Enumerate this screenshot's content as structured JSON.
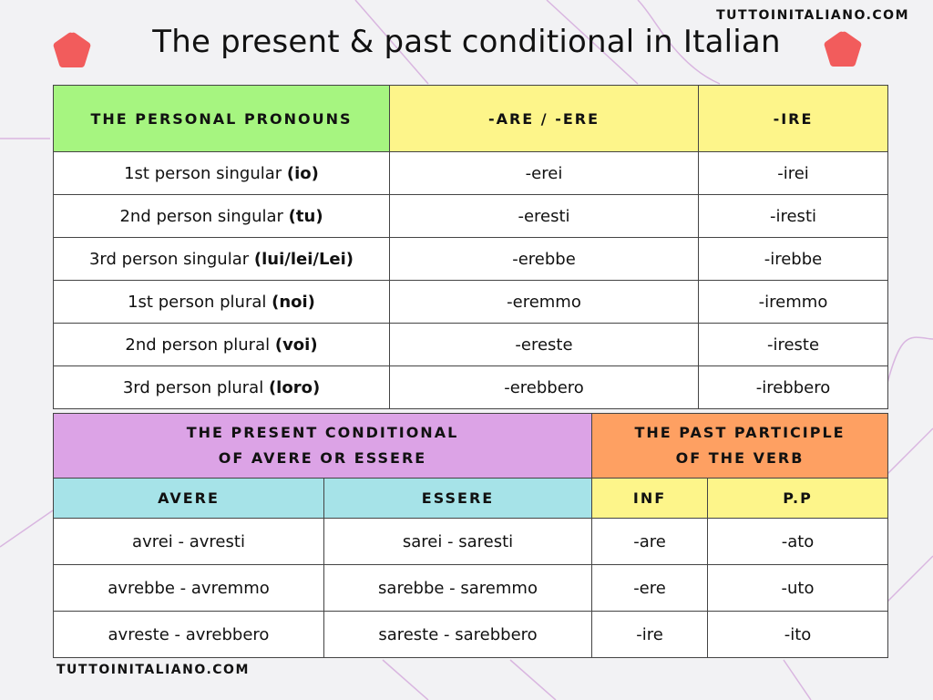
{
  "site": "TUTTOINITALIANO.COM",
  "title": "The present & past conditional in Italian",
  "colors": {
    "pentagon": "#f25c5c",
    "green": "#a6f580",
    "yellow": "#fdf58a",
    "purple": "#dca3e6",
    "orange": "#fea062",
    "cyan": "#a6e3e8"
  },
  "endings_table": {
    "headers": [
      "THE PERSONAL PRONOUNS",
      "-ARE / -ERE",
      "-IRE"
    ],
    "rows": [
      {
        "person": "1st person singular",
        "pronoun": "(io)",
        "are_ere": "-erei",
        "ire": "-irei"
      },
      {
        "person": "2nd person singular",
        "pronoun": "(tu)",
        "are_ere": "-eresti",
        "ire": "-iresti"
      },
      {
        "person": "3rd person singular",
        "pronoun": "(lui/lei/Lei)",
        "are_ere": "-erebbe",
        "ire": "-irebbe"
      },
      {
        "person": "1st person plural",
        "pronoun": "(noi)",
        "are_ere": "-eremmo",
        "ire": "-iremmo"
      },
      {
        "person": "2nd person plural",
        "pronoun": "(voi)",
        "are_ere": "-ereste",
        "ire": "-ireste"
      },
      {
        "person": "3rd person plural",
        "pronoun": "(loro)",
        "are_ere": "-erebbero",
        "ire": "-irebbero"
      }
    ]
  },
  "past_table": {
    "section_left": [
      "THE PRESENT CONDITIONAL",
      "OF AVERE OR ESSERE"
    ],
    "section_right": [
      "THE PAST PARTICIPLE",
      "OF THE VERB"
    ],
    "subheaders": [
      "AVERE",
      "ESSERE",
      "INF",
      "P.P"
    ],
    "rows": [
      {
        "avere": "avrei - avresti",
        "essere": "sarei - saresti",
        "inf": "-are",
        "pp": "-ato"
      },
      {
        "avere": "avrebbe - avremmo",
        "essere": "sarebbe - saremmo",
        "inf": "-ere",
        "pp": "-uto"
      },
      {
        "avere": "avreste - avrebbero",
        "essere": "sareste - sarebbero",
        "inf": "-ire",
        "pp": "-ito"
      }
    ]
  }
}
